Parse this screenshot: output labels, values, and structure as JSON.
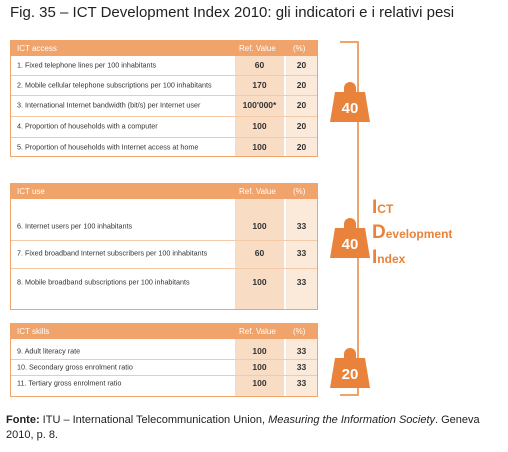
{
  "title": "Fig. 35 – ICT Development Index 2010: gli indicatori e i relativi pesi",
  "panels": [
    {
      "header": {
        "name": "ICT access",
        "ref": "Ref. Value",
        "pct": "(%)"
      },
      "weight": 40,
      "rows": [
        {
          "label": "1. Fixed telephone lines per 100 inhabitants",
          "ref": 60,
          "pct": 20
        },
        {
          "label": "2. Mobile cellular telephone subscriptions per 100 inhabitants",
          "ref": 170,
          "pct": 20
        },
        {
          "label": "3. International Internet bandwidth (bit/s) per Internet user",
          "ref": "100'000*",
          "pct": 20
        },
        {
          "label": "4. Proportion of households with a computer",
          "ref": 100,
          "pct": 20
        },
        {
          "label": "5. Proportion of households with Internet access at home",
          "ref": 100,
          "pct": 20
        }
      ]
    },
    {
      "header": {
        "name": "ICT use",
        "ref": "Ref. Value",
        "pct": "(%)"
      },
      "weight": 40,
      "rows": [
        {
          "label": "6. Internet users per 100 inhabitants",
          "ref": 100,
          "pct": 33
        },
        {
          "label": "7. Fixed broadband Internet subscribers per 100 inhabitants",
          "ref": 60,
          "pct": 33
        },
        {
          "label": "8. Mobile broadband subscriptions per 100 inhabitants",
          "ref": 100,
          "pct": 33
        }
      ]
    },
    {
      "header": {
        "name": "ICT skills",
        "ref": "Ref. Value",
        "pct": "(%)"
      },
      "weight": 20,
      "rows": [
        {
          "label": "9.   Adult literacy rate",
          "ref": 100,
          "pct": 33
        },
        {
          "label": "10. Secondary gross enrolment ratio",
          "ref": 100,
          "pct": 33
        },
        {
          "label": "11. Tertiary gross enrolment ratio",
          "ref": 100,
          "pct": 33
        }
      ]
    }
  ],
  "index_label": [
    "ICT",
    "Development",
    "Index"
  ],
  "footer": {
    "source_label": "Fonte:",
    "source_text": "ITU – International Telecommunication Union, ",
    "publication": "Measuring the Information Society",
    "details": ". Geneva 2010, p. 8."
  }
}
